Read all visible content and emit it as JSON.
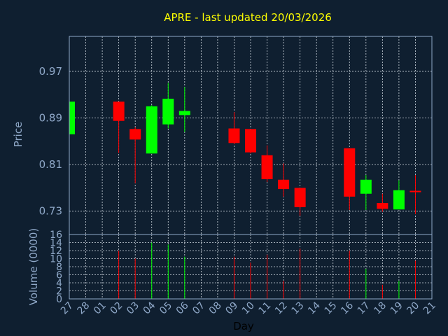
{
  "colors": {
    "background": "#0f1f30",
    "up": "#00ff00",
    "down": "#ff0000",
    "title": "#ffff00",
    "axis_text": "#8fa8c8",
    "grid": "#d0d8e0"
  },
  "chart_data": {
    "type": "candlestick",
    "title": "APRE - last updated 20/03/2026",
    "xlabel": "Day",
    "ylabel": "Price",
    "volume_label": "Volume (0000)",
    "x_ticks": [
      "27",
      "28",
      "01",
      "02",
      "03",
      "04",
      "05",
      "06",
      "07",
      "08",
      "09",
      "10",
      "11",
      "12",
      "13",
      "14",
      "15",
      "16",
      "17",
      "18",
      "19",
      "20",
      "21"
    ],
    "y_ticks": [
      "0.97",
      "0.89",
      "0.81",
      "0.73"
    ],
    "y_tick_values": [
      0.97,
      0.89,
      0.81,
      0.73
    ],
    "ylim": [
      0.69,
      1.03
    ],
    "volume_ticks": [
      "16",
      "14",
      "12",
      "10",
      "8",
      "6",
      "4",
      "2",
      "0"
    ],
    "volume_tick_values": [
      16,
      14,
      12,
      10,
      8,
      6,
      4,
      2,
      0
    ],
    "volume_ylim": [
      0,
      16
    ],
    "grid": true,
    "candles": [
      {
        "day": "27",
        "open": 0.862,
        "high": 0.918,
        "low": 0.862,
        "close": 0.918,
        "volume": 0
      },
      {
        "day": "02",
        "open": 0.918,
        "high": 0.918,
        "low": 0.83,
        "close": 0.885,
        "volume": 12
      },
      {
        "day": "03",
        "open": 0.871,
        "high": 0.874,
        "low": 0.778,
        "close": 0.853,
        "volume": 10
      },
      {
        "day": "04",
        "open": 0.829,
        "high": 0.912,
        "low": 0.829,
        "close": 0.91,
        "volume": 14
      },
      {
        "day": "05",
        "open": 0.879,
        "high": 0.95,
        "low": 0.872,
        "close": 0.923,
        "volume": 13.5
      },
      {
        "day": "06",
        "open": 0.895,
        "high": 0.943,
        "low": 0.866,
        "close": 0.902,
        "volume": 10.5
      },
      {
        "day": "09",
        "open": 0.872,
        "high": 0.9,
        "low": 0.845,
        "close": 0.847,
        "volume": 10.5
      },
      {
        "day": "10",
        "open": 0.871,
        "high": 0.871,
        "low": 0.829,
        "close": 0.831,
        "volume": 9
      },
      {
        "day": "11",
        "open": 0.826,
        "high": 0.843,
        "low": 0.78,
        "close": 0.785,
        "volume": 11
      },
      {
        "day": "12",
        "open": 0.784,
        "high": 0.812,
        "low": 0.755,
        "close": 0.768,
        "volume": 4.5
      },
      {
        "day": "13",
        "open": 0.77,
        "high": 0.77,
        "low": 0.722,
        "close": 0.737,
        "volume": 12.5
      },
      {
        "day": "16",
        "open": 0.838,
        "high": 0.838,
        "low": 0.732,
        "close": 0.755,
        "volume": 12
      },
      {
        "day": "17",
        "open": 0.76,
        "high": 0.792,
        "low": 0.732,
        "close": 0.784,
        "volume": 7.5
      },
      {
        "day": "18",
        "open": 0.744,
        "high": 0.76,
        "low": 0.729,
        "close": 0.734,
        "volume": 3.5
      },
      {
        "day": "19",
        "open": 0.733,
        "high": 0.783,
        "low": 0.733,
        "close": 0.766,
        "volume": 4.5
      },
      {
        "day": "20",
        "open": 0.765,
        "high": 0.792,
        "low": 0.725,
        "close": 0.763,
        "volume": 9.5
      }
    ]
  }
}
